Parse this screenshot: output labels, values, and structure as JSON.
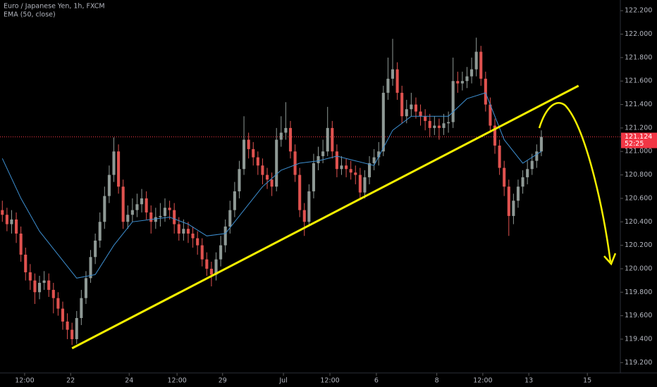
{
  "chart_data": {
    "type": "candlestick",
    "title": "Euro / Japanese Yen, 1h, FXCM",
    "xlim": [
      -0.5,
      133
    ],
    "xticks": [
      {
        "value": 4.8,
        "label": "12:00"
      },
      {
        "value": 14.7,
        "label": "22"
      },
      {
        "value": 27.3,
        "label": "24"
      },
      {
        "value": 37.6,
        "label": "12:00"
      },
      {
        "value": 47.4,
        "label": "29"
      },
      {
        "value": 60.5,
        "label": "Jul"
      },
      {
        "value": 70.5,
        "label": "12:00"
      },
      {
        "value": 80.5,
        "label": "6"
      },
      {
        "value": 93.5,
        "label": "8"
      },
      {
        "value": 103.4,
        "label": "12:00"
      },
      {
        "value": 113.3,
        "label": "13"
      },
      {
        "value": 125.9,
        "label": "15"
      }
    ],
    "ylim": [
      119.112,
      122.291
    ],
    "yticks": [
      {
        "value": 119.2,
        "label": "119.200"
      },
      {
        "value": 119.4,
        "label": "119.400"
      },
      {
        "value": 119.6,
        "label": "119.600"
      },
      {
        "value": 119.8,
        "label": "119.800"
      },
      {
        "value": 120.0,
        "label": "120.000"
      },
      {
        "value": 120.2,
        "label": "120.200"
      },
      {
        "value": 120.4,
        "label": "120.400"
      },
      {
        "value": 120.6,
        "label": "120.600"
      },
      {
        "value": 120.8,
        "label": "120.800"
      },
      {
        "value": 121.0,
        "label": "121.000"
      },
      {
        "value": 121.2,
        "label": "121.200"
      },
      {
        "value": 121.4,
        "label": "121.400"
      },
      {
        "value": 121.6,
        "label": "121.600"
      },
      {
        "value": 121.8,
        "label": "121.800"
      },
      {
        "value": 122.0,
        "label": "122.000"
      },
      {
        "value": 122.2,
        "label": "122.200"
      }
    ],
    "grid": false,
    "candles": {
      "up_color": "#8e9995",
      "down_color": "#e0524f",
      "x": [
        0,
        1,
        2,
        3,
        4,
        5,
        6,
        7,
        8,
        9,
        10,
        11,
        12,
        13,
        14,
        15,
        16,
        17,
        18,
        19,
        20,
        21,
        22,
        23,
        24,
        25,
        26,
        27,
        28,
        29,
        30,
        31,
        32,
        33,
        34,
        35,
        36,
        37,
        38,
        39,
        40,
        41,
        42,
        43,
        44,
        45,
        46,
        47,
        48,
        49,
        50,
        51,
        52,
        53,
        54,
        55,
        56,
        57,
        58,
        59,
        60,
        61,
        62,
        63,
        64,
        65,
        66,
        67,
        68,
        69,
        70,
        71,
        72,
        73,
        74,
        75,
        76,
        77,
        78,
        79,
        80,
        81,
        82,
        83,
        84,
        85,
        86,
        87,
        88,
        89,
        90,
        91,
        92,
        93,
        94,
        95,
        96,
        97,
        98,
        99,
        100,
        101,
        102,
        103,
        104,
        105,
        106,
        107,
        108,
        109,
        110,
        111,
        112,
        113,
        114,
        115,
        116
      ],
      "open": [
        120.5,
        120.46,
        120.38,
        120.42,
        120.3,
        120.12,
        119.97,
        119.9,
        119.8,
        119.88,
        119.9,
        119.82,
        119.75,
        119.66,
        119.55,
        119.48,
        119.4,
        119.58,
        119.75,
        119.92,
        120.1,
        120.24,
        120.4,
        120.62,
        120.8,
        121.0,
        120.7,
        120.4,
        120.46,
        120.5,
        120.55,
        120.6,
        120.48,
        120.4,
        120.44,
        120.45,
        120.52,
        120.5,
        120.38,
        120.3,
        120.34,
        120.3,
        120.26,
        120.2,
        120.08,
        120.0,
        119.95,
        120.08,
        120.2,
        120.36,
        120.5,
        120.66,
        120.85,
        121.1,
        121.02,
        120.95,
        120.88,
        120.8,
        120.76,
        120.7,
        121.1,
        121.16,
        121.2,
        121.0,
        120.8,
        120.5,
        120.4,
        120.66,
        120.9,
        120.96,
        121.0,
        121.2,
        121.0,
        120.85,
        120.88,
        120.85,
        120.82,
        120.8,
        120.65,
        120.78,
        120.9,
        120.95,
        121.0,
        121.5,
        121.62,
        121.7,
        121.5,
        121.3,
        121.36,
        121.4,
        121.34,
        121.3,
        121.26,
        121.2,
        121.22,
        121.2,
        121.24,
        121.25,
        121.6,
        121.58,
        121.6,
        121.64,
        121.7,
        121.85,
        121.62,
        121.4,
        121.22,
        121.05,
        120.86,
        120.7,
        120.45,
        120.58,
        120.7,
        120.78,
        120.85,
        120.92,
        121.0
      ],
      "high": [
        120.58,
        120.52,
        120.5,
        120.48,
        120.36,
        120.18,
        120.04,
        119.96,
        119.94,
        119.98,
        119.96,
        119.88,
        119.8,
        119.72,
        119.62,
        119.54,
        119.64,
        119.82,
        119.98,
        120.16,
        120.3,
        120.48,
        120.7,
        120.88,
        121.12,
        121.06,
        120.76,
        120.54,
        120.6,
        120.64,
        120.68,
        120.66,
        120.54,
        120.52,
        120.56,
        120.6,
        120.58,
        120.56,
        120.44,
        120.42,
        120.4,
        120.36,
        120.32,
        120.26,
        120.14,
        120.06,
        120.14,
        120.28,
        120.42,
        120.58,
        120.74,
        120.92,
        121.3,
        121.16,
        121.08,
        121.0,
        120.94,
        120.86,
        120.82,
        121.2,
        121.3,
        121.42,
        121.26,
        121.06,
        120.86,
        120.56,
        120.72,
        120.98,
        121.04,
        121.1,
        121.38,
        121.26,
        121.06,
        120.96,
        120.94,
        120.92,
        120.88,
        120.86,
        120.84,
        120.96,
        121.02,
        121.08,
        121.56,
        121.8,
        121.96,
        121.76,
        121.56,
        121.44,
        121.5,
        121.46,
        121.4,
        121.36,
        121.32,
        121.3,
        121.28,
        121.32,
        121.34,
        121.8,
        121.68,
        121.68,
        121.72,
        121.8,
        121.97,
        121.9,
        121.68,
        121.46,
        121.28,
        121.1,
        120.92,
        120.76,
        120.64,
        120.76,
        120.84,
        120.92,
        120.98,
        121.06,
        121.18
      ],
      "low": [
        120.4,
        120.32,
        120.3,
        120.22,
        120.06,
        119.9,
        119.82,
        119.7,
        119.74,
        119.82,
        119.76,
        119.62,
        119.6,
        119.48,
        119.4,
        119.35,
        119.36,
        119.52,
        119.7,
        119.88,
        120.04,
        120.18,
        120.34,
        120.56,
        120.74,
        120.64,
        120.34,
        120.34,
        120.4,
        120.44,
        120.48,
        120.42,
        120.3,
        120.34,
        120.36,
        120.4,
        120.42,
        120.3,
        120.24,
        120.24,
        120.22,
        120.18,
        120.12,
        120.02,
        119.94,
        119.85,
        119.9,
        120.02,
        120.14,
        120.3,
        120.44,
        120.6,
        120.8,
        120.94,
        120.88,
        120.8,
        120.72,
        120.68,
        120.62,
        120.66,
        121.04,
        121.1,
        120.94,
        120.74,
        120.44,
        120.28,
        120.36,
        120.6,
        120.84,
        120.9,
        120.96,
        120.94,
        120.78,
        120.8,
        120.78,
        120.76,
        120.72,
        120.6,
        120.6,
        120.72,
        120.84,
        120.88,
        120.96,
        121.44,
        121.56,
        121.44,
        121.24,
        121.24,
        121.3,
        121.28,
        121.22,
        121.18,
        121.12,
        121.14,
        121.1,
        121.14,
        121.16,
        121.2,
        121.5,
        121.52,
        121.54,
        121.58,
        121.64,
        121.56,
        121.34,
        121.16,
        120.98,
        120.8,
        120.62,
        120.28,
        120.38,
        120.52,
        120.64,
        120.72,
        120.8,
        120.86,
        120.96
      ],
      "close": [
        120.46,
        120.38,
        120.42,
        120.3,
        120.12,
        119.97,
        119.9,
        119.8,
        119.88,
        119.9,
        119.82,
        119.75,
        119.66,
        119.55,
        119.48,
        119.4,
        119.58,
        119.75,
        119.92,
        120.1,
        120.24,
        120.4,
        120.62,
        120.8,
        121.0,
        120.7,
        120.4,
        120.46,
        120.5,
        120.55,
        120.6,
        120.48,
        120.4,
        120.44,
        120.45,
        120.52,
        120.5,
        120.38,
        120.3,
        120.34,
        120.3,
        120.26,
        120.2,
        120.08,
        120.0,
        119.95,
        120.08,
        120.2,
        120.36,
        120.5,
        120.66,
        120.85,
        121.1,
        121.02,
        120.95,
        120.88,
        120.8,
        120.76,
        120.7,
        121.1,
        121.16,
        121.2,
        121.0,
        120.8,
        120.5,
        120.4,
        120.66,
        120.9,
        120.96,
        121.0,
        121.2,
        121.0,
        120.85,
        120.88,
        120.85,
        120.82,
        120.8,
        120.65,
        120.78,
        120.9,
        120.95,
        121.0,
        121.5,
        121.62,
        121.7,
        121.5,
        121.3,
        121.36,
        121.4,
        121.34,
        121.3,
        121.26,
        121.2,
        121.22,
        121.2,
        121.24,
        121.25,
        121.6,
        121.58,
        121.6,
        121.64,
        121.7,
        121.85,
        121.62,
        121.4,
        121.22,
        121.05,
        120.86,
        120.7,
        120.45,
        120.58,
        120.7,
        120.78,
        120.85,
        120.92,
        121.0,
        121.124
      ]
    },
    "series": [
      {
        "name": "EMA (50, close)",
        "color": "#3d8fd1",
        "x": [
          0,
          4,
          8,
          12,
          16,
          20,
          24,
          28,
          32,
          36,
          40,
          44,
          48,
          52,
          56,
          60,
          64,
          68,
          72,
          76,
          80,
          84,
          88,
          92,
          96,
          100,
          104,
          108,
          112,
          116
        ],
        "values": [
          120.94,
          120.6,
          120.32,
          120.12,
          119.92,
          119.95,
          120.2,
          120.4,
          120.42,
          120.44,
          120.38,
          120.28,
          120.3,
          120.5,
          120.7,
          120.84,
          120.9,
          120.92,
          120.96,
          120.92,
          120.88,
          121.18,
          121.3,
          121.3,
          121.3,
          121.45,
          121.5,
          121.1,
          120.9,
          121.0
        ]
      }
    ],
    "trend_line": {
      "color": "#f5f000",
      "x": [
        15,
        124
      ],
      "y": [
        119.322,
        121.56
      ]
    },
    "last_price": {
      "value": 121.124,
      "label": "121.124",
      "color": "#f23645"
    },
    "countdown": "52:25"
  }
}
